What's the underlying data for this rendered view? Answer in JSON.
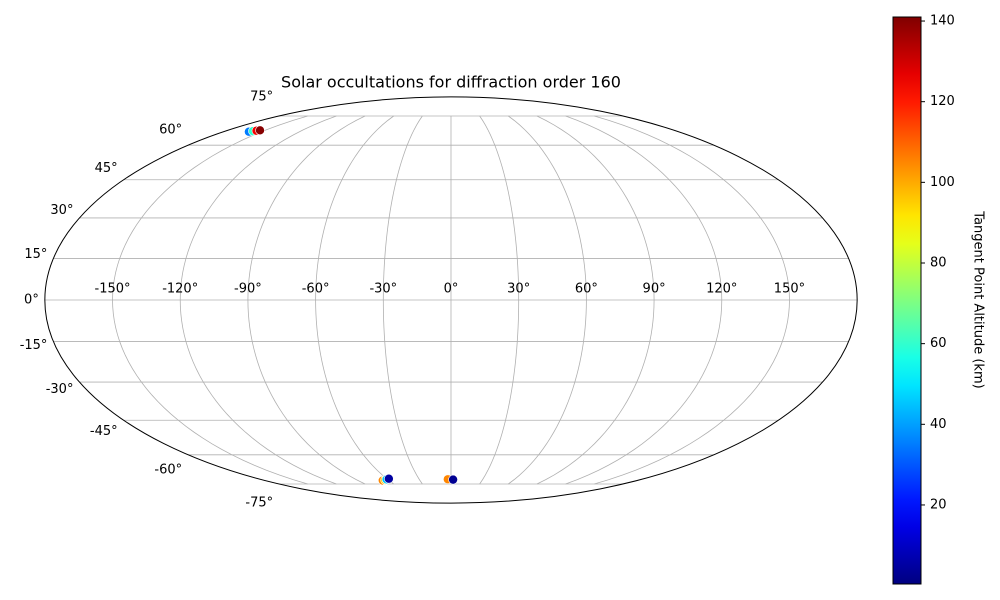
{
  "chart_data": {
    "type": "scatter",
    "projection": "mollweide",
    "title": "Solar occultations for diffraction order 160",
    "x": [
      -160,
      -158,
      -156,
      -154,
      -66,
      -63,
      -61,
      -58,
      -3,
      2
    ],
    "y": [
      66.5,
      66.8,
      67.0,
      67.2,
      -73,
      -72.7,
      -72.4,
      -72,
      -72.3,
      -72.5
    ],
    "c": [
      35,
      60,
      125,
      140,
      105,
      95,
      45,
      5,
      105,
      3
    ],
    "colormap": "jet",
    "clim": [
      0.4,
      141
    ],
    "colorbar_label": "Tangent Point Altitude (km)",
    "cticks": [
      20,
      40,
      60,
      80,
      100,
      120,
      140
    ],
    "xticks": [
      {
        "value": -150,
        "label": "-150°"
      },
      {
        "value": -120,
        "label": "-120°"
      },
      {
        "value": -90,
        "label": "-90°"
      },
      {
        "value": -60,
        "label": "-60°"
      },
      {
        "value": -30,
        "label": "-30°"
      },
      {
        "value": 0,
        "label": "0°"
      },
      {
        "value": 30,
        "label": "30°"
      },
      {
        "value": 60,
        "label": "60°"
      },
      {
        "value": 90,
        "label": "90°"
      },
      {
        "value": 120,
        "label": "120°"
      },
      {
        "value": 150,
        "label": "150°"
      }
    ],
    "yticks": [
      {
        "value": -75,
        "label": "-75°"
      },
      {
        "value": -60,
        "label": "-60°"
      },
      {
        "value": -45,
        "label": "-45°"
      },
      {
        "value": -30,
        "label": "-30°"
      },
      {
        "value": -15,
        "label": "-15°"
      },
      {
        "value": 0,
        "label": "0°"
      },
      {
        "value": 15,
        "label": "15°"
      },
      {
        "value": 30,
        "label": "30°"
      },
      {
        "value": 45,
        "label": "45°"
      },
      {
        "value": 60,
        "label": "60°"
      },
      {
        "value": 75,
        "label": "75°"
      }
    ],
    "grid": true
  }
}
